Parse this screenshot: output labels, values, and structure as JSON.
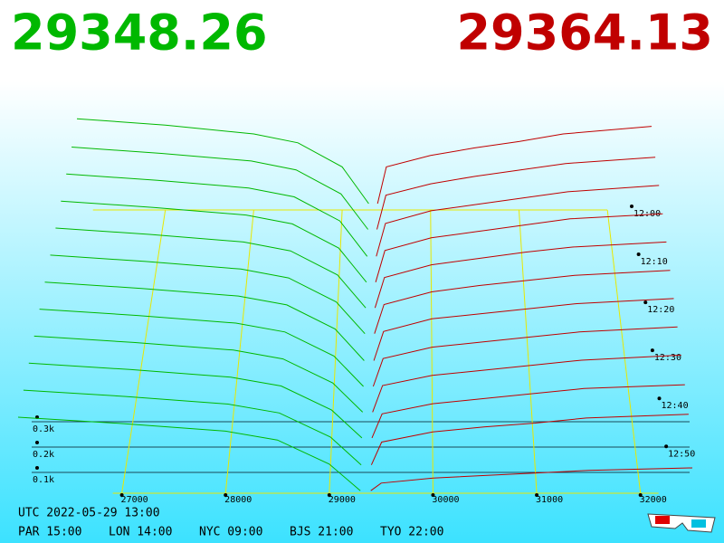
{
  "chart_data": {
    "type": "depth3d",
    "bid_price": "29348.26",
    "ask_price": "29364.13",
    "bid_color": "#00b800",
    "ask_color": "#c00000",
    "xlim": [
      26000,
      32500
    ],
    "xticks": [
      27000,
      28000,
      29000,
      30000,
      31000,
      32000
    ],
    "zticks": [
      {
        "value": 100,
        "label": "0.1k"
      },
      {
        "value": 200,
        "label": "0.2k"
      },
      {
        "value": 300,
        "label": "0.3k"
      }
    ],
    "time_labels": [
      "12:00",
      "12:10",
      "12:20",
      "12:30",
      "12:40",
      "12:50"
    ],
    "bid_prices": [
      26000,
      27000,
      28000,
      28500,
      29000,
      29300
    ],
    "ask_prices": [
      29400,
      29500,
      30000,
      30500,
      31000,
      31500,
      32500
    ],
    "snapshots": [
      {
        "bids": [
          360,
          335,
          300,
          265,
          170,
          25
        ],
        "asks": [
          25,
          170,
          215,
          245,
          270,
          300,
          330
        ]
      },
      {
        "bids": [
          350,
          325,
          295,
          260,
          165,
          25
        ],
        "asks": [
          25,
          160,
          205,
          235,
          260,
          285,
          310
        ]
      },
      {
        "bids": [
          345,
          320,
          290,
          255,
          160,
          20
        ],
        "asks": [
          20,
          150,
          200,
          225,
          250,
          275,
          300
        ]
      },
      {
        "bids": [
          340,
          315,
          285,
          250,
          155,
          20
        ],
        "asks": [
          20,
          145,
          195,
          220,
          245,
          270,
          290
        ]
      },
      {
        "bids": [
          335,
          310,
          280,
          245,
          150,
          20
        ],
        "asks": [
          20,
          140,
          190,
          215,
          240,
          260,
          280
        ]
      },
      {
        "bids": [
          330,
          305,
          275,
          240,
          145,
          20
        ],
        "asks": [
          20,
          135,
          185,
          210,
          230,
          250,
          270
        ]
      },
      {
        "bids": [
          325,
          300,
          270,
          235,
          140,
          15
        ],
        "asks": [
          15,
          130,
          180,
          200,
          220,
          240,
          260
        ]
      },
      {
        "bids": [
          320,
          295,
          265,
          230,
          135,
          15
        ],
        "asks": [
          15,
          125,
          170,
          190,
          210,
          230,
          250
        ]
      },
      {
        "bids": [
          315,
          290,
          260,
          225,
          130,
          15
        ],
        "asks": [
          15,
          120,
          160,
          180,
          200,
          220,
          240
        ]
      },
      {
        "bids": [
          310,
          285,
          255,
          220,
          125,
          15
        ],
        "asks": [
          15,
          110,
          150,
          170,
          190,
          210,
          225
        ]
      },
      {
        "bids": [
          305,
          280,
          250,
          215,
          120,
          10
        ],
        "asks": [
          10,
          100,
          140,
          160,
          175,
          195,
          210
        ]
      },
      {
        "bids": [
          300,
          275,
          245,
          210,
          115,
          10
        ],
        "asks": [
          10,
          40,
          60,
          70,
          80,
          90,
          100
        ]
      }
    ],
    "footer": {
      "utc": "UTC 2022-05-29 13:00",
      "cities": [
        "PAR 15:00",
        "LON 14:00",
        "NYC 09:00",
        "BJS 21:00",
        "TYO 22:00"
      ]
    }
  }
}
